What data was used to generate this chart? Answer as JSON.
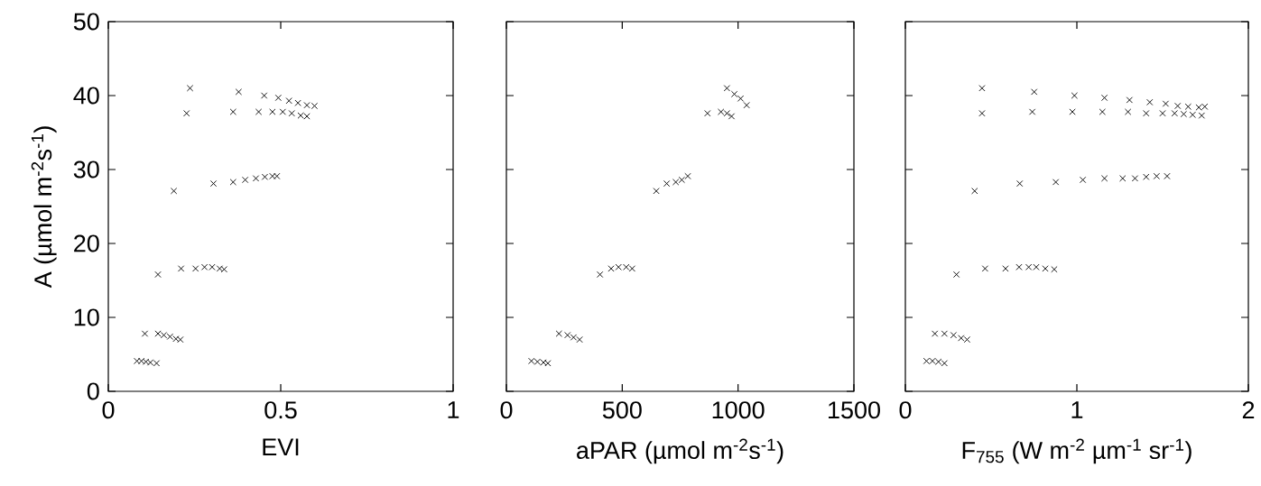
{
  "chart_data": [
    {
      "type": "scatter",
      "xlabel": "EVI",
      "ylabel": "A (µmol m$^{-2}$s$^{-1}$)",
      "marker": "cross",
      "xlim": [
        0,
        1
      ],
      "ylim": [
        0,
        50
      ],
      "xticks": [
        0,
        0.5,
        1
      ],
      "yticks": [
        0,
        10,
        20,
        30,
        40,
        50
      ],
      "series": [
        {
          "color": "#000000",
          "x": [
            0.083,
            0.096,
            0.109,
            0.122,
            0.14,
            0.106,
            0.144,
            0.161,
            0.179,
            0.196,
            0.209,
            0.144,
            0.211,
            0.253,
            0.279,
            0.301,
            0.323,
            0.336,
            0.19,
            0.305,
            0.362,
            0.397,
            0.428,
            0.454,
            0.476,
            0.489,
            0.227,
            0.362,
            0.436,
            0.476,
            0.506,
            0.532,
            0.558,
            0.576,
            0.237,
            0.378,
            0.452,
            0.493,
            0.524,
            0.55,
            0.576,
            0.598
          ],
          "values": [
            4.1,
            4.1,
            4.0,
            3.9,
            3.8,
            7.8,
            7.8,
            7.6,
            7.4,
            7.1,
            7.0,
            15.8,
            16.6,
            16.6,
            16.8,
            16.8,
            16.6,
            16.5,
            27.1,
            28.1,
            28.3,
            28.6,
            28.8,
            29.0,
            29.1,
            29.1,
            37.6,
            37.8,
            37.8,
            37.8,
            37.8,
            37.6,
            37.3,
            37.2,
            41.0,
            40.5,
            40.0,
            39.7,
            39.3,
            39.0,
            38.7,
            38.6
          ]
        }
      ]
    },
    {
      "type": "scatter",
      "xlabel": "aPAR (µmol m$^{-2}$s$^{-1}$)",
      "marker": "cross",
      "tick_labels": "x",
      "xlim": [
        0,
        1500
      ],
      "ylim": [
        0,
        50
      ],
      "xticks": [
        0,
        500,
        1000,
        1500
      ],
      "yticks": [
        0,
        10,
        20,
        30,
        40,
        50
      ],
      "series": [
        {
          "color": "#000000",
          "x": [
            108,
            134,
            160,
            179,
            227,
            264,
            290,
            316,
            404,
            452,
            484,
            517,
            543,
            647,
            692,
            731,
            757,
            783,
            868,
            926,
            952,
            972,
            952,
            984,
            1011,
            1037
          ],
          "values": [
            4.1,
            4.0,
            3.9,
            3.8,
            7.8,
            7.6,
            7.3,
            7.0,
            15.8,
            16.6,
            16.8,
            16.8,
            16.6,
            27.1,
            28.1,
            28.3,
            28.6,
            29.1,
            37.6,
            37.8,
            37.6,
            37.2,
            41.0,
            40.2,
            39.6,
            38.7
          ]
        }
      ]
    },
    {
      "type": "scatter",
      "xlabel": "F$_{755}$ (W m$^{-2}$ µm$^{-1}$ sr$^{-1}$)",
      "marker": "cross",
      "tick_labels": "x",
      "xlim": [
        0,
        2
      ],
      "ylim": [
        0,
        50
      ],
      "xticks": [
        0,
        1,
        2
      ],
      "yticks": [
        0,
        10,
        20,
        30,
        40,
        50
      ],
      "series": [
        {
          "color": "#000000",
          "x": [
            0.123,
            0.158,
            0.193,
            0.228,
            0.172,
            0.228,
            0.281,
            0.325,
            0.36,
            0.298,
            0.465,
            0.584,
            0.663,
            0.719,
            0.763,
            0.816,
            0.868,
            0.404,
            0.667,
            0.877,
            1.035,
            1.161,
            1.267,
            1.339,
            1.404,
            1.465,
            1.526,
            0.447,
            0.74,
            0.974,
            1.149,
            1.298,
            1.404,
            1.5,
            1.57,
            1.623,
            1.675,
            1.728,
            0.447,
            0.751,
            0.986,
            1.161,
            1.307,
            1.425,
            1.518,
            1.588,
            1.649,
            1.711,
            1.746
          ],
          "values": [
            4.1,
            4.1,
            4.0,
            3.8,
            7.8,
            7.8,
            7.6,
            7.2,
            7.0,
            15.8,
            16.6,
            16.6,
            16.8,
            16.8,
            16.8,
            16.6,
            16.5,
            27.1,
            28.1,
            28.3,
            28.6,
            28.8,
            28.8,
            28.8,
            29.0,
            29.1,
            29.1,
            37.6,
            37.8,
            37.8,
            37.8,
            37.8,
            37.6,
            37.6,
            37.6,
            37.5,
            37.4,
            37.3,
            41.0,
            40.5,
            40.0,
            39.7,
            39.4,
            39.1,
            38.9,
            38.6,
            38.5,
            38.4,
            38.5
          ]
        }
      ]
    }
  ]
}
